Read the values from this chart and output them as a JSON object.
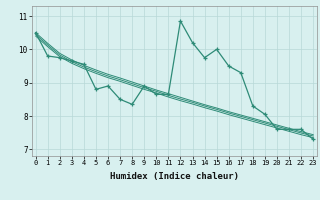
{
  "xlabel": "Humidex (Indice chaleur)",
  "x": [
    0,
    1,
    2,
    3,
    4,
    5,
    6,
    7,
    8,
    9,
    10,
    11,
    12,
    13,
    14,
    15,
    16,
    17,
    18,
    19,
    20,
    21,
    22,
    23
  ],
  "y_main": [
    10.5,
    9.8,
    9.75,
    9.65,
    9.55,
    8.8,
    8.9,
    8.5,
    8.35,
    8.9,
    8.65,
    8.65,
    10.85,
    10.2,
    9.75,
    10.0,
    9.5,
    9.3,
    8.3,
    8.05,
    7.6,
    7.6,
    7.6,
    7.3
  ],
  "y_trend1": [
    10.5,
    10.18,
    9.88,
    9.68,
    9.52,
    9.38,
    9.25,
    9.14,
    9.02,
    8.9,
    8.78,
    8.67,
    8.56,
    8.45,
    8.34,
    8.24,
    8.13,
    8.03,
    7.93,
    7.83,
    7.73,
    7.63,
    7.53,
    7.44
  ],
  "y_trend2": [
    10.45,
    10.13,
    9.83,
    9.63,
    9.47,
    9.33,
    9.2,
    9.09,
    8.97,
    8.85,
    8.74,
    8.62,
    8.51,
    8.41,
    8.3,
    8.2,
    8.09,
    7.99,
    7.89,
    7.79,
    7.69,
    7.59,
    7.49,
    7.4
  ],
  "y_trend3": [
    10.4,
    10.08,
    9.78,
    9.58,
    9.42,
    9.28,
    9.15,
    9.04,
    8.92,
    8.8,
    8.69,
    8.57,
    8.46,
    8.36,
    8.25,
    8.15,
    8.04,
    7.94,
    7.84,
    7.74,
    7.64,
    7.54,
    7.44,
    7.35
  ],
  "line_color": "#2e8b77",
  "bg_color": "#d8f0ef",
  "grid_color": "#b8d8d8",
  "ylim": [
    6.8,
    11.3
  ],
  "yticks": [
    7,
    8,
    9,
    10,
    11
  ],
  "xticks": [
    0,
    1,
    2,
    3,
    4,
    5,
    6,
    7,
    8,
    9,
    10,
    11,
    12,
    13,
    14,
    15,
    16,
    17,
    18,
    19,
    20,
    21,
    22,
    23
  ]
}
